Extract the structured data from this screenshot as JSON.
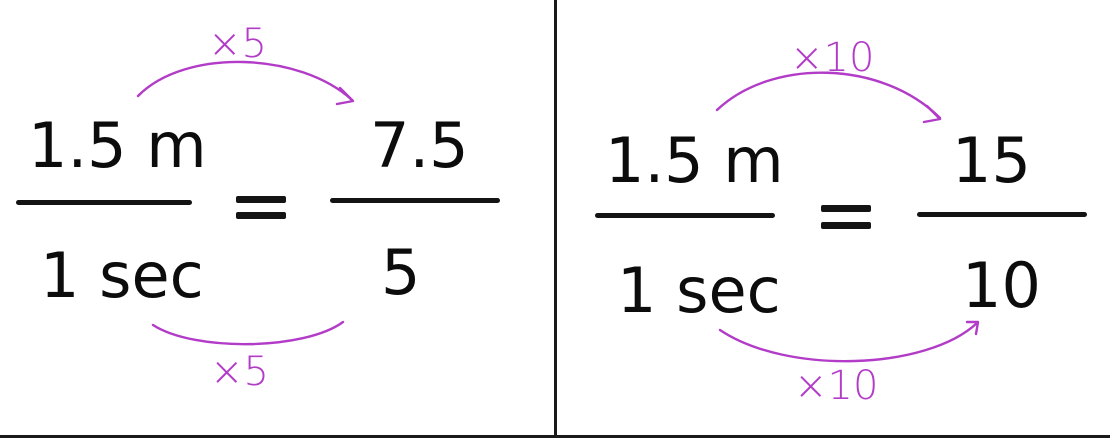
{
  "left": {
    "numerator_left": "1.5 m",
    "denominator_left": "1 sec",
    "numerator_right": "7.5",
    "denominator_right": "5",
    "multiplier_top": "×5",
    "multiplier_bottom": "×5"
  },
  "right": {
    "numerator_left": "1.5 m",
    "denominator_left": "1 sec",
    "numerator_right": "15",
    "denominator_right": "10",
    "multiplier_top": "×10",
    "multiplier_bottom": "×10"
  },
  "colors": {
    "ink": "#0c0c0c",
    "annotation": "#b23bc7",
    "background": "#ffffff"
  }
}
